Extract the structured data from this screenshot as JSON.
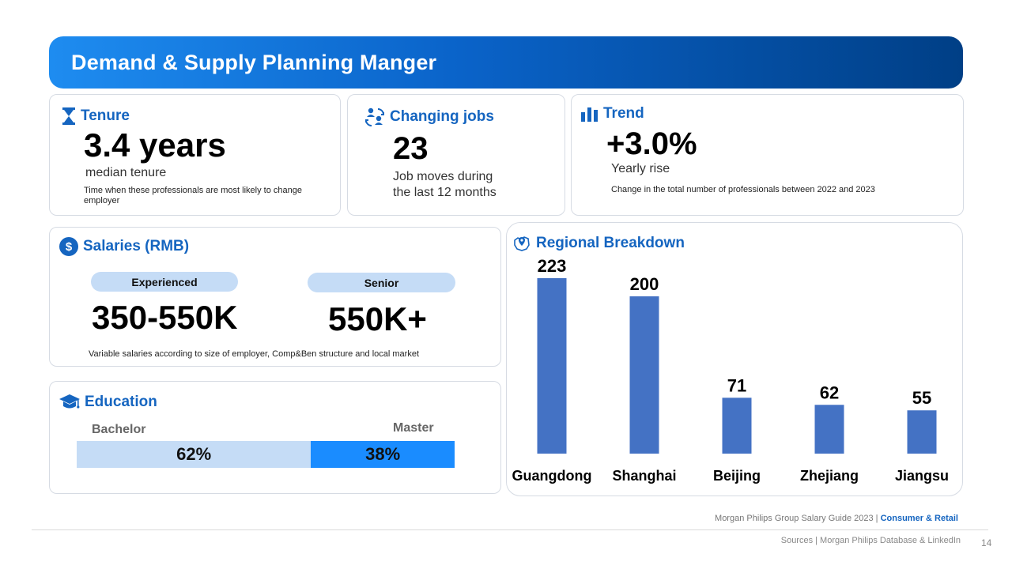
{
  "header": {
    "title": "Demand & Supply Planning Manger"
  },
  "tenure": {
    "title": "Tenure",
    "value": "3.4 years",
    "label": "median tenure",
    "note": "Time when these professionals are most likely to  change employer"
  },
  "changing_jobs": {
    "title": "Changing jobs",
    "value": "23",
    "label_line1": "Job moves during",
    "label_line2": "the last 12 months"
  },
  "trend": {
    "title": "Trend",
    "value": "+3.0%",
    "label": "Yearly rise",
    "note": "Change in the total number of professionals between 2022 and 2023"
  },
  "salaries": {
    "title": "Salaries (RMB)",
    "experienced_label": "Experienced",
    "experienced_value": "350-550K",
    "senior_label": "Senior",
    "senior_value": "550K+",
    "note": "Variable salaries according to size of employer, Comp&Ben structure and local market"
  },
  "education": {
    "title": "Education",
    "bachelor_label": "Bachelor",
    "master_label": "Master",
    "bachelor_pct": 62,
    "master_pct": 38,
    "bachelor_text": "62%",
    "master_text": "38%"
  },
  "regional": {
    "title": "Regional Breakdown"
  },
  "chart_data": {
    "type": "bar",
    "title": "Regional Breakdown",
    "categories": [
      "Guangdong",
      "Shanghai",
      "Beijing",
      "Zhejiang",
      "Jiangsu"
    ],
    "values": [
      223,
      200,
      71,
      62,
      55
    ],
    "xlabel": "",
    "ylabel": "",
    "ylim": [
      0,
      223
    ],
    "grid": false,
    "bar_color": "#4472c4"
  },
  "footer": {
    "guide_prefix": "Morgan Philips Group Salary Guide 2023 |",
    "guide_accent": "Consumer & Retail",
    "sources": "Sources | Morgan Philips Database & LinkedIn",
    "page": "14"
  },
  "colors": {
    "accent": "#1565c0",
    "bar": "#4472c4",
    "pill": "#c5dcf6",
    "master": "#1a8cff"
  }
}
